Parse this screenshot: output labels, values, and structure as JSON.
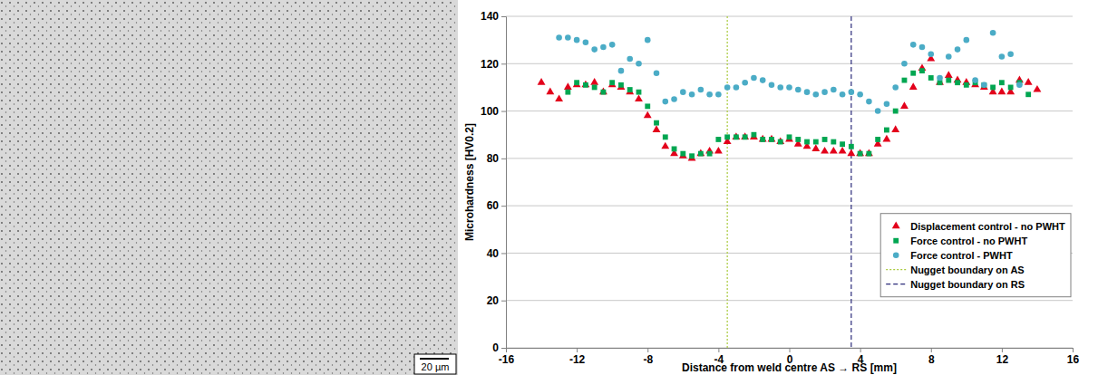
{
  "image": {
    "scale_bar": "20 µm"
  },
  "chart_data": {
    "type": "scatter",
    "x_label": "Distance from weld centre AS → RS [mm]",
    "y_label": "Microhardness [HV0.2]",
    "xlim": [
      -16,
      16
    ],
    "xticks": [
      -16,
      -12,
      -8,
      -4,
      0,
      4,
      8,
      12,
      16
    ],
    "ylim": [
      0,
      140
    ],
    "yticks": [
      0,
      20,
      40,
      60,
      80,
      100,
      120,
      140
    ],
    "grid": true,
    "legend": "lower right",
    "series": [
      {
        "name": "Displacement control - no PWHT",
        "color": "#e3001b",
        "marker": "triangle",
        "x": [
          -14,
          -13.5,
          -13,
          -12.5,
          -12,
          -11.5,
          -11,
          -10.5,
          -10,
          -9.5,
          -9,
          -8.5,
          -8,
          -7.5,
          -7,
          -6.5,
          -6,
          -5.5,
          -5,
          -4.5,
          -4,
          -3.5,
          -3,
          -2.5,
          -2,
          -1.5,
          -1,
          -0.5,
          0,
          0.5,
          1,
          1.5,
          2,
          2.5,
          3,
          3.5,
          4,
          4.5,
          5,
          5.5,
          6,
          6.5,
          7,
          7.5,
          8,
          8.5,
          9,
          9.5,
          10,
          10.5,
          11,
          11.5,
          12,
          12.5,
          13,
          13.5,
          14
        ],
        "values": [
          112,
          108,
          105,
          110,
          111,
          111,
          112,
          108,
          111,
          110,
          108,
          105,
          98,
          92,
          85,
          82,
          81,
          80,
          82,
          83,
          83,
          87,
          89,
          89,
          89,
          88,
          88,
          87,
          88,
          86,
          85,
          84,
          83,
          83,
          83,
          82,
          82,
          82,
          86,
          88,
          92,
          102,
          110,
          118,
          122,
          112,
          115,
          113,
          112,
          111,
          110,
          108,
          108,
          108,
          113,
          112,
          109
        ]
      },
      {
        "name": "Force control - no PWHT",
        "color": "#00a651",
        "marker": "square",
        "x": [
          -12.5,
          -12,
          -11.5,
          -11,
          -10.5,
          -10,
          -9.5,
          -9,
          -8.5,
          -8,
          -7.5,
          -7,
          -6.5,
          -6,
          -5.5,
          -5,
          -4.5,
          -4,
          -3.5,
          -3,
          -2.5,
          -2,
          -1.5,
          -1,
          -0.5,
          0,
          0.5,
          1,
          1.5,
          2,
          2.5,
          3,
          3.5,
          4,
          4.5,
          5,
          5.5,
          6,
          6.5,
          7,
          7.5,
          8,
          8.5,
          9,
          9.5,
          10,
          10.5,
          11,
          11.5,
          12,
          12.5,
          13,
          13.5
        ],
        "values": [
          108,
          112,
          111,
          110,
          108,
          112,
          111,
          109,
          108,
          102,
          95,
          89,
          84,
          82,
          81,
          82,
          82,
          88,
          89,
          89,
          89,
          90,
          88,
          88,
          87,
          89,
          88,
          87,
          87,
          88,
          87,
          86,
          85,
          82,
          82,
          88,
          92,
          100,
          113,
          116,
          117,
          114,
          112,
          113,
          112,
          111,
          112,
          111,
          110,
          112,
          110,
          112,
          107
        ]
      },
      {
        "name": "Force control - PWHT",
        "color": "#4bacc6",
        "marker": "circle",
        "x": [
          -13,
          -12.5,
          -12,
          -11.5,
          -11,
          -10.5,
          -10,
          -9.5,
          -9,
          -8.5,
          -8,
          -7.5,
          -7,
          -6.5,
          -6,
          -5.5,
          -5,
          -4.5,
          -4,
          -3.5,
          -3,
          -2.5,
          -2,
          -1.5,
          -1,
          -0.5,
          0,
          0.5,
          1,
          1.5,
          2,
          2.5,
          3,
          3.5,
          4,
          4.5,
          5,
          5.5,
          6,
          6.5,
          7,
          7.5,
          8,
          8.5,
          9,
          9.5,
          10,
          10.5,
          11,
          11.5,
          12,
          12.5,
          13
        ],
        "values": [
          131,
          131,
          130,
          129,
          126,
          127,
          128,
          117,
          122,
          120,
          130,
          116,
          104,
          105,
          108,
          107,
          109,
          107,
          107,
          110,
          110,
          112,
          114,
          113,
          111,
          110,
          110,
          109,
          108,
          107,
          108,
          109,
          107,
          108,
          107,
          104,
          100,
          103,
          110,
          120,
          128,
          127,
          124,
          114,
          123,
          126,
          130,
          113,
          111,
          133,
          123,
          124,
          111
        ]
      }
    ],
    "reference_lines": [
      {
        "name": "Nugget boundary on AS",
        "x": -3.5,
        "color": "#a8c93a",
        "line_style": "dotted"
      },
      {
        "name": "Nugget boundary on RS",
        "x": 3.5,
        "color": "#2b2b7a",
        "line_style": "dashed"
      }
    ]
  }
}
